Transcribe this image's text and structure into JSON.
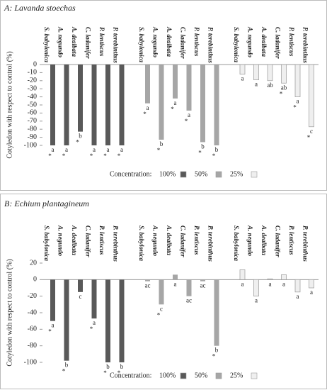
{
  "chart_data": [
    {
      "type": "bar",
      "title": "A: Lavanda stoechas",
      "ylabel": "Cotyledon with respect to control (%)",
      "categories": [
        "S. babylonica",
        "A. negundo",
        "A. dealbata",
        "C. ladanifer",
        "P. lentiscus",
        "P. terebinthus"
      ],
      "ylim": [
        -100,
        0
      ],
      "yticks": [
        0,
        -10,
        -20,
        -30,
        -40,
        -50,
        -60,
        -70,
        -80,
        -90,
        -100
      ],
      "legend_title": "Concentration:",
      "series": [
        {
          "name": "100%",
          "color": "#595959",
          "values": [
            -100,
            -100,
            -83,
            -100,
            -100,
            -100
          ],
          "letters": [
            "a",
            "a",
            "b",
            "a",
            "a",
            "a"
          ],
          "signif": [
            "*",
            "*",
            "*",
            "*",
            "*",
            "*"
          ]
        },
        {
          "name": "50%",
          "color": "#a6a6a6",
          "values": [
            -48,
            -93,
            -42,
            -57,
            -96,
            -100
          ],
          "letters": [
            "a",
            "b",
            "a",
            "a",
            "b",
            "b"
          ],
          "signif": [
            "*",
            "*",
            "*",
            "*",
            "*",
            "*"
          ]
        },
        {
          "name": "25%",
          "color": "#efefef",
          "values": [
            -12,
            -19,
            -20,
            -23,
            -40,
            -77
          ],
          "letters": [
            "a",
            "a",
            "ab",
            "ab",
            "a",
            "c"
          ],
          "signif": [
            null,
            null,
            null,
            "*",
            "*",
            "*"
          ]
        }
      ]
    },
    {
      "type": "bar",
      "title": "B: Echium plantagineum",
      "ylabel": "Cotyledon with respect to control (%)",
      "categories": [
        "S. babylonica",
        "A. negundo",
        "A. dealbata",
        "C. ladanifer",
        "P. lentiscus",
        "P. terebinthus"
      ],
      "ylim": [
        -100,
        20
      ],
      "yticks": [
        20,
        0,
        -20,
        -40,
        -60,
        -80,
        -100
      ],
      "legend_title": "Concentration:",
      "series": [
        {
          "name": "100%",
          "color": "#595959",
          "values": [
            -50,
            -98,
            -15,
            -47,
            -100,
            -100
          ],
          "letters": [
            "a",
            "b",
            "c",
            "a",
            "b",
            "b"
          ],
          "signif": [
            "*",
            "*",
            null,
            "*",
            "*",
            "*"
          ]
        },
        {
          "name": "50%",
          "color": "#a6a6a6",
          "values": [
            -2,
            -30,
            6,
            -20,
            -2,
            -80
          ],
          "letters": [
            "ac",
            "c",
            "a",
            "ac",
            "ac",
            "b"
          ],
          "signif": [
            null,
            "*",
            null,
            null,
            null,
            "*"
          ]
        },
        {
          "name": "25%",
          "color": "#efefef",
          "values": [
            12,
            -20,
            1,
            6,
            -15,
            -10
          ],
          "letters": [
            "a",
            "a",
            "a",
            "a",
            "a",
            "a"
          ],
          "signif": [
            null,
            null,
            null,
            null,
            null,
            null
          ]
        }
      ]
    }
  ]
}
